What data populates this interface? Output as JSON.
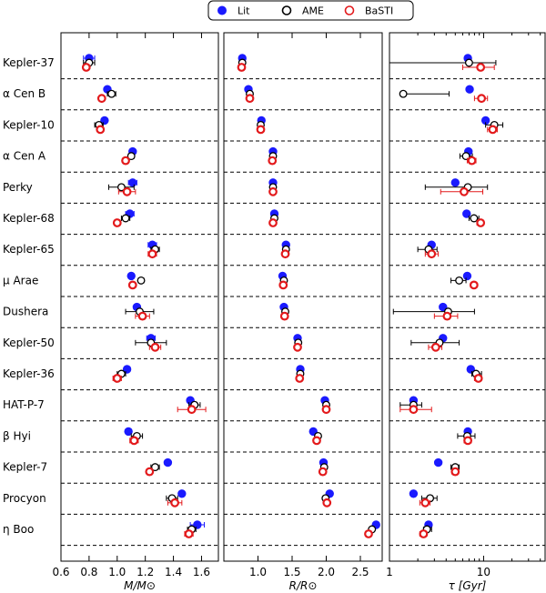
{
  "chart_data": {
    "type": "scatter",
    "legend": {
      "placement": "top-center",
      "entries": [
        {
          "name": "Lit",
          "marker": "filled-circle",
          "color": "#1a1aff"
        },
        {
          "name": "AME",
          "marker": "open-circle",
          "color": "#000000"
        },
        {
          "name": "BaSTI",
          "marker": "open-circle",
          "color": "#e31a1c"
        }
      ]
    },
    "stars": [
      "Kepler-37",
      "α Cen B",
      "Kepler-10",
      "α Cen A",
      "Perky",
      "Kepler-68",
      "Kepler-65",
      "μ Arae",
      "Dushera",
      "Kepler-50",
      "Kepler-36",
      "HAT-P-7",
      "β Hyi",
      "Kepler-7",
      "Procyon",
      "η Boo"
    ],
    "panels": [
      {
        "id": "mass",
        "xlabel": "M/M⊙",
        "scale": "linear",
        "xlim": [
          0.6,
          1.72
        ],
        "ticks": [
          0.6,
          0.8,
          1.0,
          1.2,
          1.4,
          1.6
        ],
        "tick_labels": [
          "0.6",
          "0.8",
          "1.0",
          "1.2",
          "1.4",
          "1.6"
        ],
        "lit": [
          [
            0.8,
            0.04
          ],
          [
            0.93,
            0
          ],
          [
            0.91,
            0
          ],
          [
            1.11,
            0
          ],
          [
            1.11,
            0.03
          ],
          [
            1.09,
            0.03
          ],
          [
            1.25,
            0.03
          ],
          [
            1.1,
            0
          ],
          [
            1.14,
            0.02
          ],
          [
            1.24,
            0.03
          ],
          [
            1.07,
            0.02
          ],
          [
            1.52,
            0
          ],
          [
            1.08,
            0.02
          ],
          [
            1.36,
            0.02
          ],
          [
            1.46,
            0
          ],
          [
            1.57,
            0.05
          ]
        ],
        "ame": [
          [
            0.8,
            0.04
          ],
          [
            0.96,
            0.03
          ],
          [
            0.87,
            0.03
          ],
          [
            1.1,
            0.02
          ],
          [
            1.03,
            0.09
          ],
          [
            1.06,
            0.03
          ],
          [
            1.27,
            0.03
          ],
          [
            1.17,
            0.02
          ],
          [
            1.16,
            0.1
          ],
          [
            1.24,
            0.11
          ],
          [
            1.03,
            0.03
          ],
          [
            1.55,
            0.04
          ],
          [
            1.14,
            0.04
          ],
          [
            1.27,
            0.03
          ],
          [
            1.39,
            0.04
          ],
          [
            1.53,
            0.03
          ]
        ],
        "basti": [
          [
            0.78,
            0.02
          ],
          [
            0.89,
            0
          ],
          [
            0.88,
            0.02
          ],
          [
            1.06,
            0.02
          ],
          [
            1.07,
            0.06
          ],
          [
            1.0,
            0.02
          ],
          [
            1.25,
            0.03
          ],
          [
            1.11,
            0.02
          ],
          [
            1.18,
            0.05
          ],
          [
            1.27,
            0.04
          ],
          [
            1.0,
            0.03
          ],
          [
            1.53,
            0.1
          ],
          [
            1.12,
            0.03
          ],
          [
            1.23,
            0
          ],
          [
            1.41,
            0.05
          ],
          [
            1.51,
            0.03
          ]
        ]
      },
      {
        "id": "radius",
        "xlabel": "R/R⊙",
        "scale": "linear",
        "xlim": [
          0.5,
          2.82
        ],
        "ticks": [
          1.0,
          1.5,
          2.0,
          2.5
        ],
        "tick_labels": [
          "1.0",
          "1.5",
          "2.0",
          "2.5"
        ],
        "lit": [
          [
            0.77,
            0
          ],
          [
            0.86,
            0
          ],
          [
            1.05,
            0
          ],
          [
            1.22,
            0
          ],
          [
            1.22,
            0
          ],
          [
            1.24,
            0
          ],
          [
            1.41,
            0
          ],
          [
            1.36,
            0
          ],
          [
            1.38,
            0
          ],
          [
            1.58,
            0
          ],
          [
            1.62,
            0
          ],
          [
            1.98,
            0
          ],
          [
            1.81,
            0
          ],
          [
            1.96,
            0
          ],
          [
            2.05,
            0
          ],
          [
            2.73,
            0
          ]
        ],
        "ame": [
          [
            0.77,
            0
          ],
          [
            0.88,
            0
          ],
          [
            1.04,
            0
          ],
          [
            1.22,
            0
          ],
          [
            1.22,
            0
          ],
          [
            1.24,
            0
          ],
          [
            1.41,
            0
          ],
          [
            1.38,
            0
          ],
          [
            1.4,
            0
          ],
          [
            1.59,
            0
          ],
          [
            1.62,
            0
          ],
          [
            2.0,
            0
          ],
          [
            1.88,
            0
          ],
          [
            1.97,
            0
          ],
          [
            1.99,
            0
          ],
          [
            2.67,
            0
          ]
        ],
        "basti": [
          [
            0.76,
            0
          ],
          [
            0.88,
            0
          ],
          [
            1.04,
            0
          ],
          [
            1.21,
            0
          ],
          [
            1.22,
            0
          ],
          [
            1.22,
            0
          ],
          [
            1.4,
            0
          ],
          [
            1.37,
            0
          ],
          [
            1.39,
            0
          ],
          [
            1.58,
            0
          ],
          [
            1.61,
            0
          ],
          [
            2.0,
            0
          ],
          [
            1.86,
            0
          ],
          [
            1.95,
            0
          ],
          [
            2.01,
            0
          ],
          [
            2.62,
            0
          ]
        ]
      },
      {
        "id": "age",
        "xlabel": "τ   [Gyr]",
        "scale": "log",
        "xlim": [
          1.0,
          45.0
        ],
        "ticks": [
          1,
          10
        ],
        "tick_labels": [
          "1",
          "10"
        ],
        "minor_ticks": [
          2,
          3,
          4,
          5,
          6,
          7,
          8,
          9,
          20,
          30,
          40
        ],
        "lit": [
          [
            6.8,
            null
          ],
          [
            7.1,
            null
          ],
          [
            10.5,
            null
          ],
          [
            6.9,
            null
          ],
          [
            5.0,
            null
          ],
          [
            6.6,
            null
          ],
          [
            2.8,
            null
          ],
          [
            6.7,
            null
          ],
          [
            3.7,
            null
          ],
          [
            3.7,
            null
          ],
          [
            7.3,
            null
          ],
          [
            1.8,
            null
          ],
          [
            6.8,
            null
          ],
          [
            3.3,
            null
          ],
          [
            1.8,
            null
          ],
          [
            2.6,
            null
          ]
        ],
        "ame": [
          [
            7.0,
            [
              1.0,
              13.5
            ]
          ],
          [
            1.4,
            [
              1.4,
              4.3
            ]
          ],
          [
            13.0,
            [
              10.5,
              16.0
            ]
          ],
          [
            6.5,
            [
              5.6,
              7.6
            ]
          ],
          [
            6.8,
            [
              2.4,
              11.0
            ]
          ],
          [
            7.9,
            [
              7.0,
              8.9
            ]
          ],
          [
            2.6,
            [
              2.0,
              3.2
            ]
          ],
          [
            5.5,
            [
              4.5,
              6.5
            ]
          ],
          [
            4.2,
            [
              1.1,
              8.0
            ]
          ],
          [
            3.4,
            [
              1.7,
              5.5
            ]
          ],
          [
            8.3,
            [
              7.5,
              9.5
            ]
          ],
          [
            1.8,
            [
              1.3,
              2.2
            ]
          ],
          [
            6.7,
            [
              5.3,
              8.1
            ]
          ],
          [
            5.0,
            [
              4.5,
              5.5
            ]
          ],
          [
            2.7,
            [
              2.2,
              3.2
            ]
          ],
          [
            2.5,
            [
              2.3,
              2.8
            ]
          ]
        ],
        "basti": [
          [
            9.3,
            [
              6.0,
              13.0
            ]
          ],
          [
            9.5,
            [
              8.0,
              11.0
            ]
          ],
          [
            12.5,
            [
              11.0,
              14.0
            ]
          ],
          [
            7.5,
            [
              6.7,
              8.3
            ]
          ],
          [
            6.2,
            [
              3.5,
              9.8
            ]
          ],
          [
            9.3,
            [
              8.5,
              10.0
            ]
          ],
          [
            2.8,
            [
              2.4,
              3.3
            ]
          ],
          [
            7.9,
            [
              7.3,
              8.5
            ]
          ],
          [
            4.1,
            [
              3.0,
              5.3
            ]
          ],
          [
            3.1,
            [
              2.6,
              3.6
            ]
          ],
          [
            8.8,
            [
              8.0,
              9.5
            ]
          ],
          [
            1.8,
            [
              1.3,
              2.8
            ]
          ],
          [
            6.8,
            [
              6.2,
              7.4
            ]
          ],
          [
            5.0,
            [
              4.6,
              5.4
            ]
          ],
          [
            2.4,
            [
              2.1,
              2.7
            ]
          ],
          [
            2.3,
            [
              2.1,
              2.5
            ]
          ]
        ]
      }
    ]
  }
}
